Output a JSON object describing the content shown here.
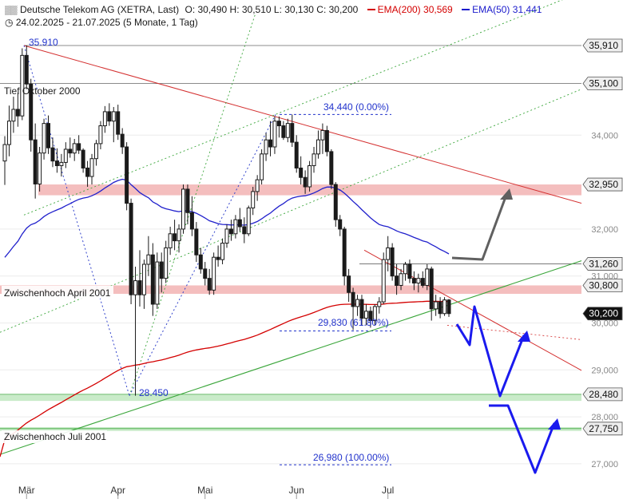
{
  "header": {
    "line1_instrument": "Deutsche Telekom AG (XETRA, Last)",
    "line1_ohlc": "O: 30,490  H: 30,510  L: 30,130  C: 30,200",
    "ema200_label": "EMA(200)",
    "ema200_value": "30,569",
    "ema50_label": "EMA(50)",
    "ema50_value": "31,441",
    "line2": "24.02.2025 - 21.07.2025  (5 Monate, 1 Tag)"
  },
  "colors": {
    "candle": "#1a1a1a",
    "ema200": "#d40000",
    "ema50": "#2020cc",
    "resistance_band": "#f2b3b3",
    "support_band": "#bfe8bf",
    "trend_green": "#3aa63a",
    "projection_blue": "#1a1aee",
    "projection_gray": "#606060"
  },
  "chart_data": {
    "type": "candlestick",
    "ylim": [
      26.6,
      36.4
    ],
    "y_ticks": [
      "27,000",
      "28,000",
      "29,000",
      "30,000",
      "31,000",
      "32,000",
      "34,000"
    ],
    "x_ticks": [
      {
        "label": "Mär",
        "date": "2025-03-03"
      },
      {
        "label": "Apr",
        "date": "2025-04-01"
      },
      {
        "label": "Mai",
        "date": "2025-05-02"
      },
      {
        "label": "Jun",
        "date": "2025-06-02"
      },
      {
        "label": "Jul",
        "date": "2025-07-01"
      }
    ],
    "price_tags": [
      {
        "label": "35,910",
        "value": 35.91
      },
      {
        "label": "35,100",
        "value": 35.1
      },
      {
        "label": "32,950",
        "value": 32.95
      },
      {
        "label": "31,260",
        "value": 31.26
      },
      {
        "label": "30,800",
        "value": 30.8
      },
      {
        "label": "30,200",
        "value": 30.2,
        "current": true
      },
      {
        "label": "28,480",
        "value": 28.48
      },
      {
        "label": "27,750",
        "value": 27.75
      }
    ],
    "annotations": {
      "high_label": "35.910",
      "low_label": "28.450",
      "fib0_label": "34,440 (0.00%)",
      "fib618_label": "29,830 (61.80%)",
      "fib100_label": "26,980 (100.00%)",
      "level_oct2000": "Tief Oktober 2000",
      "level_apr2001": "Zwischenhoch April 2001",
      "level_jul2001": "Zwischenhoch Juli 2001"
    },
    "bands": [
      {
        "kind": "resistance",
        "from": 32.72,
        "to": 32.95
      },
      {
        "kind": "resistance",
        "from": 30.62,
        "to": 30.8
      },
      {
        "kind": "support",
        "from": 28.34,
        "to": 28.48
      },
      {
        "kind": "support",
        "from": 27.7,
        "to": 27.78
      }
    ],
    "ohlc": [
      {
        "date": "2025-02-24",
        "o": 33.45,
        "h": 33.98,
        "l": 32.94,
        "c": 33.8
      },
      {
        "date": "2025-02-25",
        "o": 33.8,
        "h": 34.63,
        "l": 33.55,
        "c": 34.3
      },
      {
        "date": "2025-02-26",
        "o": 34.3,
        "h": 34.82,
        "l": 34.05,
        "c": 34.55
      },
      {
        "date": "2025-02-27",
        "o": 34.55,
        "h": 34.9,
        "l": 34.18,
        "c": 34.41
      },
      {
        "date": "2025-02-28",
        "o": 34.41,
        "h": 35.85,
        "l": 34.32,
        "c": 35.7
      },
      {
        "date": "2025-03-03",
        "o": 35.7,
        "h": 35.91,
        "l": 34.98,
        "c": 35.09
      },
      {
        "date": "2025-03-04",
        "o": 35.09,
        "h": 35.2,
        "l": 33.65,
        "c": 33.9
      },
      {
        "date": "2025-03-05",
        "o": 33.9,
        "h": 34.25,
        "l": 32.65,
        "c": 32.96
      },
      {
        "date": "2025-03-06",
        "o": 32.96,
        "h": 33.75,
        "l": 32.8,
        "c": 33.62
      },
      {
        "date": "2025-03-07",
        "o": 33.62,
        "h": 34.35,
        "l": 33.48,
        "c": 34.25
      },
      {
        "date": "2025-03-10",
        "o": 34.25,
        "h": 34.42,
        "l": 33.6,
        "c": 33.73
      },
      {
        "date": "2025-03-11",
        "o": 33.73,
        "h": 33.95,
        "l": 33.32,
        "c": 33.45
      },
      {
        "date": "2025-03-12",
        "o": 33.45,
        "h": 33.72,
        "l": 33.2,
        "c": 33.35
      },
      {
        "date": "2025-03-13",
        "o": 33.35,
        "h": 33.6,
        "l": 33.12,
        "c": 33.42
      },
      {
        "date": "2025-03-14",
        "o": 33.42,
        "h": 33.85,
        "l": 33.3,
        "c": 33.7
      },
      {
        "date": "2025-03-17",
        "o": 33.7,
        "h": 33.95,
        "l": 33.52,
        "c": 33.62
      },
      {
        "date": "2025-03-18",
        "o": 33.62,
        "h": 33.92,
        "l": 33.45,
        "c": 33.82
      },
      {
        "date": "2025-03-19",
        "o": 33.82,
        "h": 34.0,
        "l": 33.6,
        "c": 33.68
      },
      {
        "date": "2025-03-20",
        "o": 33.68,
        "h": 33.72,
        "l": 33.2,
        "c": 33.3
      },
      {
        "date": "2025-03-21",
        "o": 33.3,
        "h": 33.45,
        "l": 32.9,
        "c": 33.12
      },
      {
        "date": "2025-03-24",
        "o": 33.12,
        "h": 33.6,
        "l": 32.95,
        "c": 33.5
      },
      {
        "date": "2025-03-25",
        "o": 33.5,
        "h": 33.9,
        "l": 33.35,
        "c": 33.82
      },
      {
        "date": "2025-03-26",
        "o": 33.82,
        "h": 34.3,
        "l": 33.7,
        "c": 34.2
      },
      {
        "date": "2025-03-27",
        "o": 34.2,
        "h": 34.62,
        "l": 34.05,
        "c": 34.5
      },
      {
        "date": "2025-03-28",
        "o": 34.5,
        "h": 34.68,
        "l": 34.2,
        "c": 34.3
      },
      {
        "date": "2025-03-31",
        "o": 34.3,
        "h": 34.6,
        "l": 33.85,
        "c": 34.5
      },
      {
        "date": "2025-04-01",
        "o": 34.5,
        "h": 34.65,
        "l": 33.9,
        "c": 34.02
      },
      {
        "date": "2025-04-02",
        "o": 34.02,
        "h": 34.15,
        "l": 33.6,
        "c": 33.75
      },
      {
        "date": "2025-04-03",
        "o": 33.75,
        "h": 33.85,
        "l": 32.4,
        "c": 32.55
      },
      {
        "date": "2025-04-04",
        "o": 32.55,
        "h": 32.65,
        "l": 30.4,
        "c": 30.6
      },
      {
        "date": "2025-04-07",
        "o": 30.6,
        "h": 31.2,
        "l": 28.45,
        "c": 30.9
      },
      {
        "date": "2025-04-08",
        "o": 30.9,
        "h": 31.55,
        "l": 30.35,
        "c": 30.6
      },
      {
        "date": "2025-04-09",
        "o": 30.6,
        "h": 31.35,
        "l": 30.3,
        "c": 31.25
      },
      {
        "date": "2025-04-10",
        "o": 31.25,
        "h": 31.85,
        "l": 31.0,
        "c": 31.45
      },
      {
        "date": "2025-04-11",
        "o": 31.45,
        "h": 31.7,
        "l": 30.15,
        "c": 30.4
      },
      {
        "date": "2025-04-14",
        "o": 30.4,
        "h": 31.5,
        "l": 30.3,
        "c": 31.3
      },
      {
        "date": "2025-04-15",
        "o": 31.3,
        "h": 31.5,
        "l": 30.65,
        "c": 30.95
      },
      {
        "date": "2025-04-16",
        "o": 30.95,
        "h": 31.75,
        "l": 30.85,
        "c": 31.6
      },
      {
        "date": "2025-04-17",
        "o": 31.6,
        "h": 32.05,
        "l": 31.45,
        "c": 31.9
      },
      {
        "date": "2025-04-22",
        "o": 31.9,
        "h": 32.2,
        "l": 31.55,
        "c": 31.75
      },
      {
        "date": "2025-04-23",
        "o": 31.75,
        "h": 32.1,
        "l": 31.5,
        "c": 32.0
      },
      {
        "date": "2025-04-24",
        "o": 32.0,
        "h": 32.95,
        "l": 31.9,
        "c": 32.85
      },
      {
        "date": "2025-04-25",
        "o": 32.85,
        "h": 32.95,
        "l": 32.1,
        "c": 32.35
      },
      {
        "date": "2025-04-28",
        "o": 32.35,
        "h": 32.7,
        "l": 31.85,
        "c": 32.0
      },
      {
        "date": "2025-04-29",
        "o": 32.0,
        "h": 32.15,
        "l": 31.3,
        "c": 31.45
      },
      {
        "date": "2025-04-30",
        "o": 31.45,
        "h": 31.6,
        "l": 31.05,
        "c": 31.15
      },
      {
        "date": "2025-05-02",
        "o": 31.15,
        "h": 31.3,
        "l": 30.8,
        "c": 30.95
      },
      {
        "date": "2025-05-05",
        "o": 30.95,
        "h": 31.15,
        "l": 30.6,
        "c": 30.7
      },
      {
        "date": "2025-05-06",
        "o": 30.7,
        "h": 31.5,
        "l": 30.6,
        "c": 31.4
      },
      {
        "date": "2025-05-07",
        "o": 31.4,
        "h": 31.65,
        "l": 31.2,
        "c": 31.35
      },
      {
        "date": "2025-05-08",
        "o": 31.35,
        "h": 31.8,
        "l": 31.25,
        "c": 31.7
      },
      {
        "date": "2025-05-09",
        "o": 31.7,
        "h": 32.1,
        "l": 31.6,
        "c": 32.0
      },
      {
        "date": "2025-05-12",
        "o": 32.0,
        "h": 32.2,
        "l": 31.75,
        "c": 31.9
      },
      {
        "date": "2025-05-13",
        "o": 31.9,
        "h": 32.3,
        "l": 31.8,
        "c": 32.2
      },
      {
        "date": "2025-05-14",
        "o": 32.2,
        "h": 32.45,
        "l": 31.95,
        "c": 32.05
      },
      {
        "date": "2025-05-15",
        "o": 32.05,
        "h": 32.25,
        "l": 31.7,
        "c": 31.9
      },
      {
        "date": "2025-05-16",
        "o": 31.9,
        "h": 32.5,
        "l": 31.85,
        "c": 32.45
      },
      {
        "date": "2025-05-19",
        "o": 32.45,
        "h": 32.9,
        "l": 32.3,
        "c": 32.8
      },
      {
        "date": "2025-05-20",
        "o": 32.8,
        "h": 33.15,
        "l": 32.6,
        "c": 33.05
      },
      {
        "date": "2025-05-21",
        "o": 33.05,
        "h": 33.7,
        "l": 32.95,
        "c": 33.6
      },
      {
        "date": "2025-05-22",
        "o": 33.6,
        "h": 34.05,
        "l": 33.45,
        "c": 33.9
      },
      {
        "date": "2025-05-23",
        "o": 33.9,
        "h": 34.3,
        "l": 33.55,
        "c": 33.75
      },
      {
        "date": "2025-05-26",
        "o": 33.75,
        "h": 34.4,
        "l": 33.6,
        "c": 34.3
      },
      {
        "date": "2025-05-27",
        "o": 34.3,
        "h": 34.4,
        "l": 33.95,
        "c": 34.2
      },
      {
        "date": "2025-05-28",
        "o": 34.2,
        "h": 34.3,
        "l": 33.9,
        "c": 33.95
      },
      {
        "date": "2025-05-29",
        "o": 33.95,
        "h": 34.35,
        "l": 33.85,
        "c": 34.25
      },
      {
        "date": "2025-05-30",
        "o": 34.25,
        "h": 34.44,
        "l": 33.75,
        "c": 33.85
      },
      {
        "date": "2025-06-02",
        "o": 33.85,
        "h": 34.0,
        "l": 33.2,
        "c": 33.3
      },
      {
        "date": "2025-06-03",
        "o": 33.3,
        "h": 33.55,
        "l": 32.95,
        "c": 33.1
      },
      {
        "date": "2025-06-04",
        "o": 33.1,
        "h": 33.25,
        "l": 32.75,
        "c": 32.9
      },
      {
        "date": "2025-06-05",
        "o": 32.9,
        "h": 33.45,
        "l": 32.8,
        "c": 33.35
      },
      {
        "date": "2025-06-06",
        "o": 33.35,
        "h": 33.75,
        "l": 33.2,
        "c": 33.6
      },
      {
        "date": "2025-06-09",
        "o": 33.6,
        "h": 34.1,
        "l": 33.5,
        "c": 33.9
      },
      {
        "date": "2025-06-10",
        "o": 33.9,
        "h": 34.25,
        "l": 33.6,
        "c": 34.1
      },
      {
        "date": "2025-06-11",
        "o": 34.1,
        "h": 34.2,
        "l": 33.55,
        "c": 33.65
      },
      {
        "date": "2025-06-12",
        "o": 33.65,
        "h": 33.7,
        "l": 32.85,
        "c": 32.95
      },
      {
        "date": "2025-06-13",
        "o": 32.95,
        "h": 33.0,
        "l": 32.05,
        "c": 32.2
      },
      {
        "date": "2025-06-16",
        "o": 32.2,
        "h": 32.3,
        "l": 31.85,
        "c": 32.0
      },
      {
        "date": "2025-06-17",
        "o": 32.0,
        "h": 32.05,
        "l": 30.8,
        "c": 31.0
      },
      {
        "date": "2025-06-18",
        "o": 31.0,
        "h": 31.15,
        "l": 30.45,
        "c": 30.65
      },
      {
        "date": "2025-06-19",
        "o": 30.65,
        "h": 30.75,
        "l": 29.85,
        "c": 30.35
      },
      {
        "date": "2025-06-20",
        "o": 30.35,
        "h": 30.6,
        "l": 30.15,
        "c": 30.5
      },
      {
        "date": "2025-06-23",
        "o": 30.5,
        "h": 30.6,
        "l": 29.95,
        "c": 30.1
      },
      {
        "date": "2025-06-24",
        "o": 30.1,
        "h": 30.4,
        "l": 29.95,
        "c": 30.25
      },
      {
        "date": "2025-06-25",
        "o": 30.25,
        "h": 30.35,
        "l": 29.9,
        "c": 30.05
      },
      {
        "date": "2025-06-26",
        "o": 30.05,
        "h": 30.4,
        "l": 29.95,
        "c": 30.35
      },
      {
        "date": "2025-06-27",
        "o": 30.35,
        "h": 30.55,
        "l": 30.2,
        "c": 30.45
      },
      {
        "date": "2025-06-30",
        "o": 30.45,
        "h": 31.5,
        "l": 30.4,
        "c": 31.35
      },
      {
        "date": "2025-07-01",
        "o": 31.35,
        "h": 31.85,
        "l": 31.1,
        "c": 31.6
      },
      {
        "date": "2025-07-02",
        "o": 31.6,
        "h": 31.7,
        "l": 30.9,
        "c": 31.0
      },
      {
        "date": "2025-07-03",
        "o": 31.0,
        "h": 31.25,
        "l": 30.6,
        "c": 30.8
      },
      {
        "date": "2025-07-04",
        "o": 30.8,
        "h": 31.15,
        "l": 30.7,
        "c": 31.05
      },
      {
        "date": "2025-07-07",
        "o": 31.05,
        "h": 31.3,
        "l": 30.9,
        "c": 31.25
      },
      {
        "date": "2025-07-08",
        "o": 31.25,
        "h": 31.35,
        "l": 30.85,
        "c": 30.95
      },
      {
        "date": "2025-07-09",
        "o": 30.95,
        "h": 31.1,
        "l": 30.7,
        "c": 30.85
      },
      {
        "date": "2025-07-10",
        "o": 30.85,
        "h": 31.05,
        "l": 30.65,
        "c": 30.95
      },
      {
        "date": "2025-07-11",
        "o": 30.95,
        "h": 31.1,
        "l": 30.75,
        "c": 30.8
      },
      {
        "date": "2025-07-14",
        "o": 30.8,
        "h": 31.25,
        "l": 30.7,
        "c": 31.15
      },
      {
        "date": "2025-07-15",
        "o": 31.15,
        "h": 31.2,
        "l": 30.05,
        "c": 30.3
      },
      {
        "date": "2025-07-16",
        "o": 30.3,
        "h": 30.6,
        "l": 30.15,
        "c": 30.45
      },
      {
        "date": "2025-07-17",
        "o": 30.45,
        "h": 30.55,
        "l": 30.1,
        "c": 30.2
      },
      {
        "date": "2025-07-18",
        "o": 30.2,
        "h": 30.55,
        "l": 30.15,
        "c": 30.49
      },
      {
        "date": "2025-07-21",
        "o": 30.49,
        "h": 30.51,
        "l": 30.13,
        "c": 30.2
      }
    ]
  }
}
